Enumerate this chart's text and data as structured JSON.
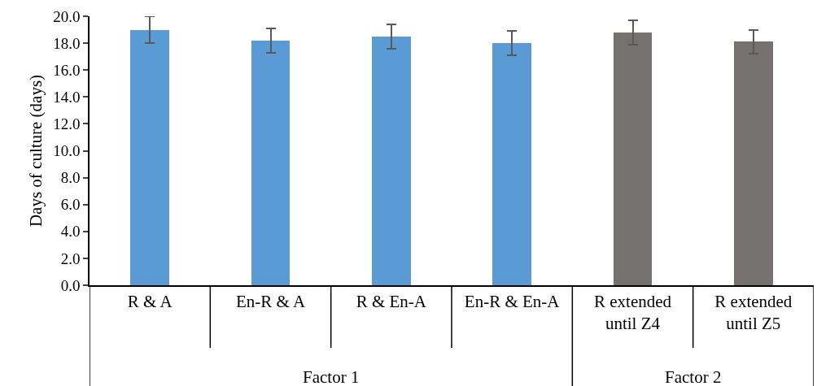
{
  "chart_data": {
    "type": "bar",
    "ylabel": "Days of culture (days)",
    "categories": [
      "R & A",
      "En-R & A",
      "R & En-A",
      "En-R & En-A",
      "R extended until Z4",
      "R extended until Z5"
    ],
    "values": [
      19.0,
      18.2,
      18.5,
      18.0,
      18.8,
      18.1
    ],
    "errors": [
      1.0,
      0.9,
      0.9,
      0.9,
      0.9,
      0.9
    ],
    "colors": [
      "#5b9bd5",
      "#5b9bd5",
      "#5b9bd5",
      "#5b9bd5",
      "#767171",
      "#767171"
    ],
    "annotations": [
      "Factor 1",
      "Factor 2"
    ],
    "ylim": [
      0,
      20
    ],
    "yticks": [
      {
        "value": 0,
        "label": "0.0"
      },
      {
        "value": 2,
        "label": "2.0"
      },
      {
        "value": 4,
        "label": "4.0"
      },
      {
        "value": 6,
        "label": "6.0"
      },
      {
        "value": 8,
        "label": "8.0"
      },
      {
        "value": 10,
        "label": "10.0"
      },
      {
        "value": 12,
        "label": "12.0"
      },
      {
        "value": 14,
        "label": "14.0"
      },
      {
        "value": 16,
        "label": "16.0"
      },
      {
        "value": 18,
        "label": "18.0"
      },
      {
        "value": 20,
        "label": "20.0"
      }
    ],
    "grid": false
  }
}
